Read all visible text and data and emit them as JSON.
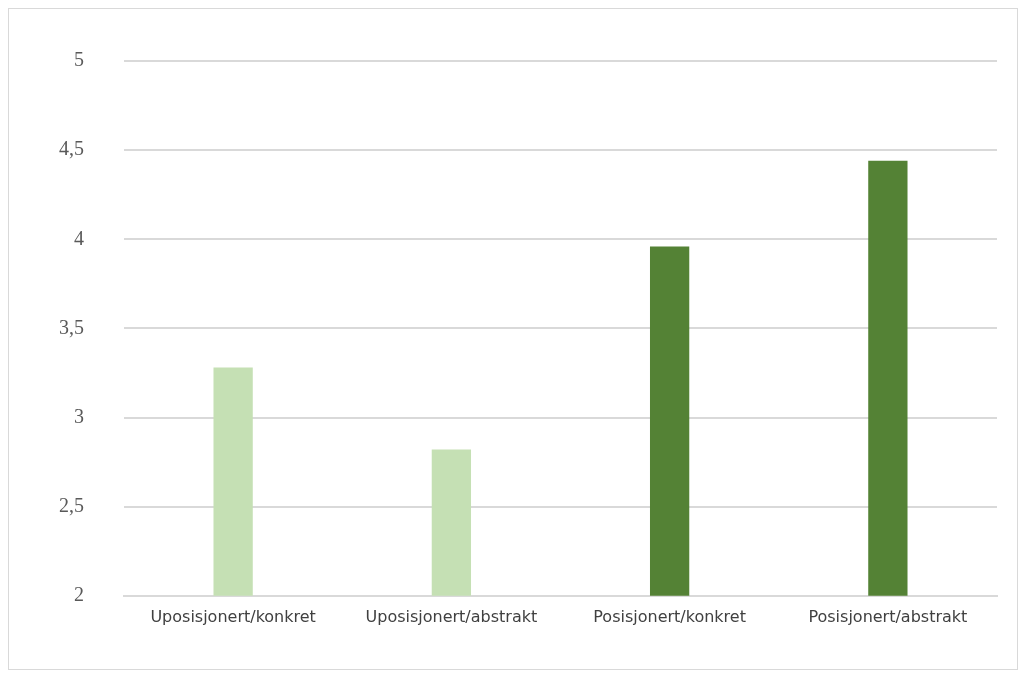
{
  "chart_data": {
    "type": "bar",
    "categories": [
      "Uposisjonert/konkret",
      "Uposisjonert/abstrakt",
      "Posisjonert/konkret",
      "Posisjonert/abstrakt"
    ],
    "values": [
      3.28,
      2.82,
      3.96,
      4.44
    ],
    "colors": [
      "#c5e0b4",
      "#c5e0b4",
      "#548235",
      "#548235"
    ],
    "ylim": [
      2,
      5
    ],
    "yticks": [
      2,
      {
        "value": 2.5,
        "label": "2,5"
      },
      3,
      {
        "value": 3.5,
        "label": "3,5"
      },
      4,
      {
        "value": 4.5,
        "label": "4,5"
      },
      5
    ],
    "grid": "y",
    "legend": false
  }
}
